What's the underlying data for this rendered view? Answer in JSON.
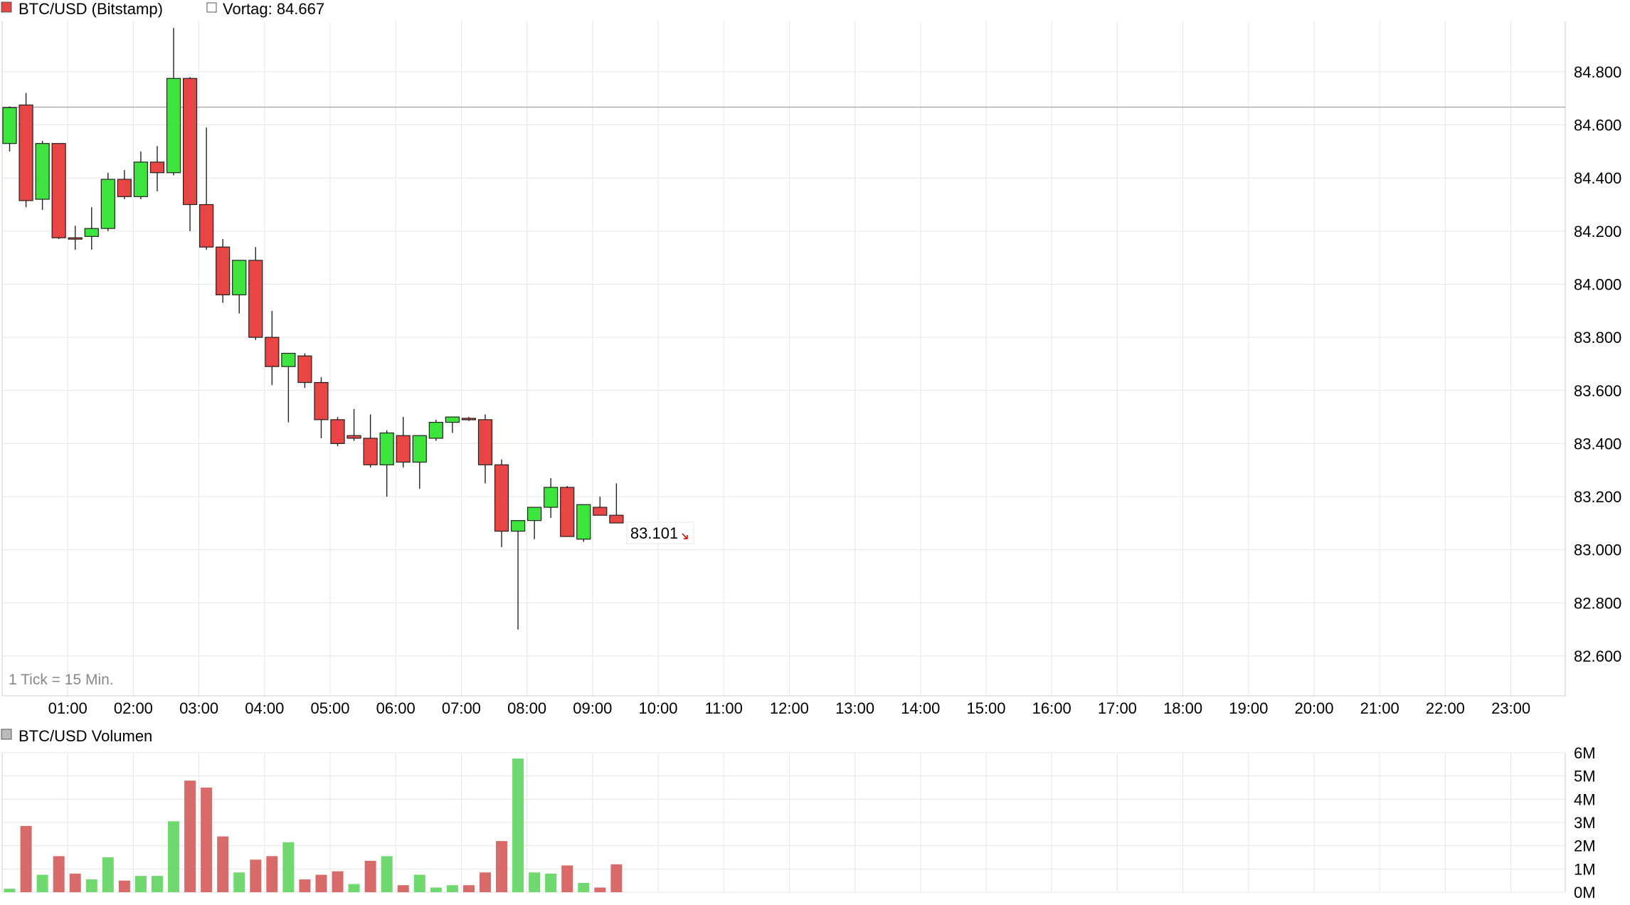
{
  "legend": {
    "series_label": "BTC/USD (Bitstamp)",
    "prev_label": "Vortag: 84.667",
    "volume_label": "BTC/USD Volumen",
    "tick_note": "1 Tick = 15 Min."
  },
  "colors": {
    "up": "#3de43d",
    "down": "#e84545",
    "vol_up": "#6fd86f",
    "vol_down": "#d96a6a",
    "grid": "#e6e6e6",
    "prev_line": "#999999",
    "last_price": "#e00000"
  },
  "last_price_label": "83.101",
  "chart_data": [
    {
      "type": "candlestick",
      "title": "BTC/USD (Bitstamp)",
      "interval": "15 Min.",
      "previous_close": 84667,
      "last": 83101,
      "ylim": [
        82450,
        84990
      ],
      "yticks": [
        84800,
        84600,
        84400,
        84200,
        84000,
        83800,
        83600,
        83400,
        83200,
        83000,
        82800,
        82600
      ],
      "ytick_labels": [
        "84.800",
        "84.600",
        "84.400",
        "84.200",
        "84.000",
        "83.800",
        "83.600",
        "83.400",
        "83.200",
        "83.000",
        "82.800",
        "82.600"
      ],
      "x_domain_hours": [
        0,
        24
      ],
      "xticks": [
        "01:00",
        "02:00",
        "03:00",
        "04:00",
        "05:00",
        "06:00",
        "07:00",
        "08:00",
        "09:00",
        "10:00",
        "11:00",
        "12:00",
        "13:00",
        "14:00",
        "15:00",
        "16:00",
        "17:00",
        "18:00",
        "19:00",
        "20:00",
        "21:00",
        "22:00",
        "23:00"
      ],
      "candles": [
        {
          "t": "00:00",
          "o": 84530,
          "h": 84670,
          "l": 84500,
          "c": 84665
        },
        {
          "t": "00:15",
          "o": 84675,
          "h": 84720,
          "l": 84290,
          "c": 84315
        },
        {
          "t": "00:30",
          "o": 84320,
          "h": 84540,
          "l": 84280,
          "c": 84530
        },
        {
          "t": "00:45",
          "o": 84530,
          "h": 84530,
          "l": 84170,
          "c": 84175
        },
        {
          "t": "01:00",
          "o": 84175,
          "h": 84220,
          "l": 84130,
          "c": 84170
        },
        {
          "t": "01:15",
          "o": 84180,
          "h": 84290,
          "l": 84130,
          "c": 84210
        },
        {
          "t": "01:30",
          "o": 84210,
          "h": 84420,
          "l": 84200,
          "c": 84395
        },
        {
          "t": "01:45",
          "o": 84395,
          "h": 84430,
          "l": 84320,
          "c": 84330
        },
        {
          "t": "02:00",
          "o": 84330,
          "h": 84500,
          "l": 84320,
          "c": 84460
        },
        {
          "t": "02:15",
          "o": 84460,
          "h": 84520,
          "l": 84350,
          "c": 84420
        },
        {
          "t": "02:30",
          "o": 84420,
          "h": 84965,
          "l": 84410,
          "c": 84775
        },
        {
          "t": "02:45",
          "o": 84775,
          "h": 84780,
          "l": 84200,
          "c": 84300
        },
        {
          "t": "03:00",
          "o": 84300,
          "h": 84590,
          "l": 84130,
          "c": 84140
        },
        {
          "t": "03:15",
          "o": 84140,
          "h": 84170,
          "l": 83930,
          "c": 83960
        },
        {
          "t": "03:30",
          "o": 83960,
          "h": 84090,
          "l": 83890,
          "c": 84090
        },
        {
          "t": "03:45",
          "o": 84090,
          "h": 84140,
          "l": 83790,
          "c": 83800
        },
        {
          "t": "04:00",
          "o": 83800,
          "h": 83900,
          "l": 83620,
          "c": 83690
        },
        {
          "t": "04:15",
          "o": 83690,
          "h": 83740,
          "l": 83480,
          "c": 83740
        },
        {
          "t": "04:30",
          "o": 83730,
          "h": 83740,
          "l": 83610,
          "c": 83630
        },
        {
          "t": "04:45",
          "o": 83630,
          "h": 83650,
          "l": 83420,
          "c": 83490
        },
        {
          "t": "05:00",
          "o": 83490,
          "h": 83500,
          "l": 83390,
          "c": 83400
        },
        {
          "t": "05:15",
          "o": 83430,
          "h": 83530,
          "l": 83410,
          "c": 83420
        },
        {
          "t": "05:30",
          "o": 83420,
          "h": 83510,
          "l": 83310,
          "c": 83320
        },
        {
          "t": "05:45",
          "o": 83320,
          "h": 83450,
          "l": 83200,
          "c": 83440
        },
        {
          "t": "06:00",
          "o": 83430,
          "h": 83500,
          "l": 83310,
          "c": 83330
        },
        {
          "t": "06:15",
          "o": 83330,
          "h": 83430,
          "l": 83230,
          "c": 83430
        },
        {
          "t": "06:30",
          "o": 83420,
          "h": 83490,
          "l": 83410,
          "c": 83480
        },
        {
          "t": "06:45",
          "o": 83480,
          "h": 83500,
          "l": 83440,
          "c": 83500
        },
        {
          "t": "07:00",
          "o": 83495,
          "h": 83500,
          "l": 83485,
          "c": 83490
        },
        {
          "t": "07:15",
          "o": 83490,
          "h": 83510,
          "l": 83250,
          "c": 83320
        },
        {
          "t": "07:30",
          "o": 83320,
          "h": 83340,
          "l": 83010,
          "c": 83070
        },
        {
          "t": "07:45",
          "o": 83070,
          "h": 83110,
          "l": 82700,
          "c": 83110
        },
        {
          "t": "08:00",
          "o": 83110,
          "h": 83160,
          "l": 83040,
          "c": 83160
        },
        {
          "t": "08:15",
          "o": 83160,
          "h": 83270,
          "l": 83120,
          "c": 83235
        },
        {
          "t": "08:30",
          "o": 83235,
          "h": 83240,
          "l": 83050,
          "c": 83050
        },
        {
          "t": "08:45",
          "o": 83040,
          "h": 83170,
          "l": 83030,
          "c": 83170
        },
        {
          "t": "09:00",
          "o": 83160,
          "h": 83200,
          "l": 83130,
          "c": 83130
        },
        {
          "t": "09:15",
          "o": 83130,
          "h": 83250,
          "l": 83100,
          "c": 83101
        }
      ]
    },
    {
      "type": "bar",
      "title": "BTC/USD Volumen",
      "unit": "M",
      "ylim": [
        0,
        6
      ],
      "yticks": [
        6,
        5,
        4,
        3,
        2,
        1,
        0
      ],
      "ytick_labels": [
        "6M",
        "5M",
        "4M",
        "3M",
        "2M",
        "1M",
        "0M"
      ],
      "values": [
        0.15,
        2.85,
        0.75,
        1.55,
        0.8,
        0.55,
        1.5,
        0.5,
        0.7,
        0.7,
        3.05,
        4.8,
        4.5,
        2.4,
        0.85,
        1.4,
        1.55,
        2.15,
        0.55,
        0.75,
        0.9,
        0.35,
        1.35,
        1.55,
        0.3,
        0.75,
        0.2,
        0.3,
        0.3,
        0.85,
        2.2,
        5.75,
        0.85,
        0.8,
        1.15,
        0.4,
        0.2,
        1.2
      ],
      "directions": [
        "up",
        "down",
        "up",
        "down",
        "down",
        "up",
        "up",
        "down",
        "up",
        "up",
        "up",
        "down",
        "down",
        "down",
        "up",
        "down",
        "down",
        "up",
        "down",
        "down",
        "down",
        "up",
        "down",
        "up",
        "down",
        "up",
        "up",
        "up",
        "down",
        "down",
        "down",
        "up",
        "up",
        "up",
        "down",
        "up",
        "down",
        "down"
      ]
    }
  ]
}
